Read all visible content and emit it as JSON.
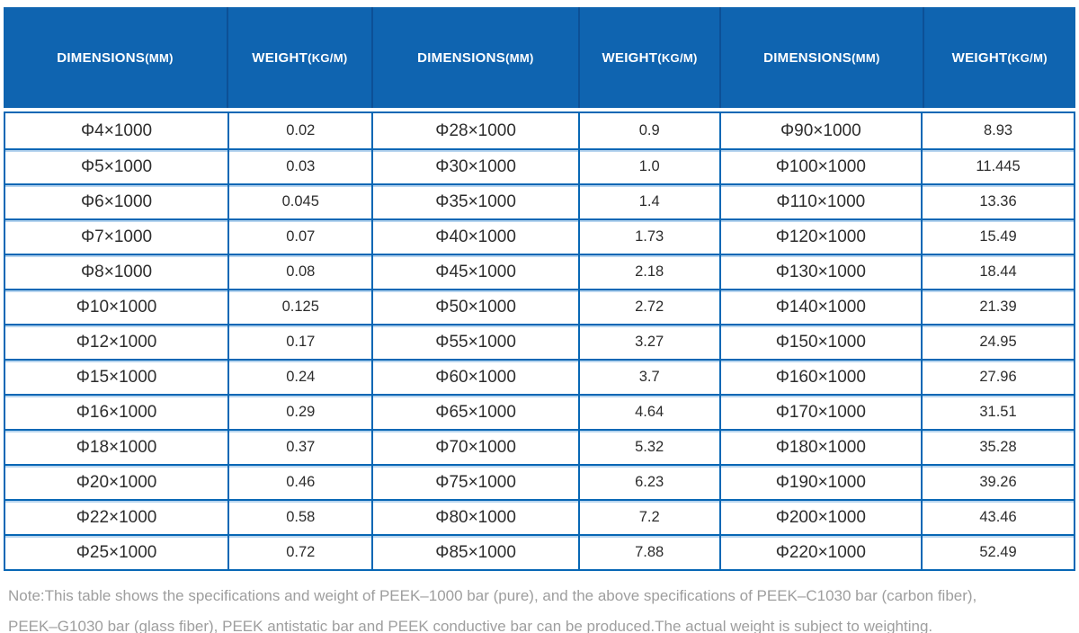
{
  "colors": {
    "header_bg": "#0f64b0",
    "header_separator": "#0c5096",
    "grid_border": "#0767b5",
    "grid_border_light": "#7db2e2",
    "cell_text": "#2d2d2d",
    "header_text": "#ffffff",
    "note_text": "#9e9e9e"
  },
  "table": {
    "columns": [
      {
        "label": "DIMENSIONS",
        "unit": "(MM)",
        "type": "dimensions"
      },
      {
        "label": "WEIGHT",
        "unit": "(KG/M)",
        "type": "weight"
      },
      {
        "label": "DIMENSIONS",
        "unit": "(MM)",
        "type": "dimensions"
      },
      {
        "label": "WEIGHT",
        "unit": "(KG/M)",
        "type": "weight"
      },
      {
        "label": "DIMENSIONS",
        "unit": "(MM)",
        "type": "dimensions"
      },
      {
        "label": "WEIGHT",
        "unit": "(KG/M)",
        "type": "weight"
      }
    ],
    "rows": [
      [
        "Φ4×1000",
        "0.02",
        "Φ28×1000",
        "0.9",
        "Φ90×1000",
        "8.93"
      ],
      [
        "Φ5×1000",
        "0.03",
        "Φ30×1000",
        "1.0",
        "Φ100×1000",
        "11.445"
      ],
      [
        "Φ6×1000",
        "0.045",
        "Φ35×1000",
        "1.4",
        "Φ110×1000",
        "13.36"
      ],
      [
        "Φ7×1000",
        "0.07",
        "Φ40×1000",
        "1.73",
        "Φ120×1000",
        "15.49"
      ],
      [
        "Φ8×1000",
        "0.08",
        "Φ45×1000",
        "2.18",
        "Φ130×1000",
        "18.44"
      ],
      [
        "Φ10×1000",
        "0.125",
        "Φ50×1000",
        "2.72",
        "Φ140×1000",
        "21.39"
      ],
      [
        "Φ12×1000",
        "0.17",
        "Φ55×1000",
        "3.27",
        "Φ150×1000",
        "24.95"
      ],
      [
        "Φ15×1000",
        "0.24",
        "Φ60×1000",
        "3.7",
        "Φ160×1000",
        "27.96"
      ],
      [
        "Φ16×1000",
        "0.29",
        "Φ65×1000",
        "4.64",
        "Φ170×1000",
        "31.51"
      ],
      [
        "Φ18×1000",
        "0.37",
        "Φ70×1000",
        "5.32",
        "Φ180×1000",
        "35.28"
      ],
      [
        "Φ20×1000",
        "0.46",
        "Φ75×1000",
        "6.23",
        "Φ190×1000",
        "39.26"
      ],
      [
        "Φ22×1000",
        "0.58",
        "Φ80×1000",
        "7.2",
        "Φ200×1000",
        "43.46"
      ],
      [
        "Φ25×1000",
        "0.72",
        "Φ85×1000",
        "7.88",
        "Φ220×1000",
        "52.49"
      ]
    ]
  },
  "note": {
    "lines": [
      "Note:This table shows the specifications and weight of PEEK–1000 bar (pure), and the above specifications of PEEK–C1030 bar (carbon fiber),",
      "PEEK–G1030 bar (glass fiber), PEEK antistatic bar and PEEK conductive bar can be produced.The actual weight is subject to weighting."
    ]
  }
}
